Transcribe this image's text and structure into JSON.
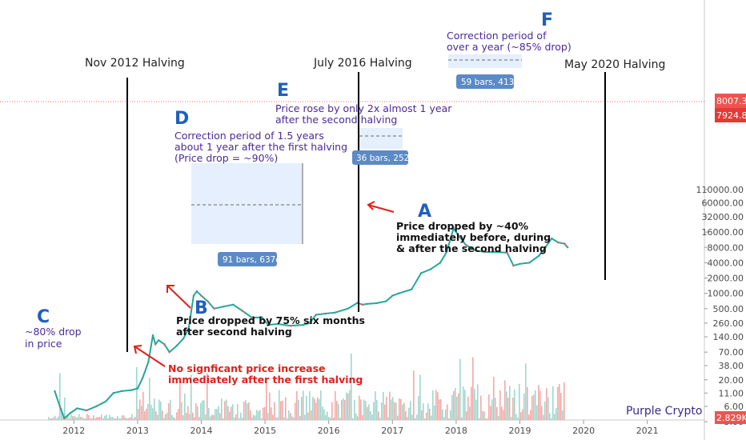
{
  "chart_data": {
    "type": "line",
    "x_axis": {
      "ticks": [
        "2012",
        "2013",
        "2014",
        "2015",
        "2016",
        "2017",
        "2018",
        "2019",
        "2020",
        "2021"
      ]
    },
    "y_axis": {
      "scale": "log",
      "ticks": [
        "110000.00",
        "60000.00",
        "32000.00",
        "16000.00",
        "8000.00",
        "4000.00",
        "2000.00",
        "1000.00",
        "500.00",
        "260.00",
        "140.00",
        "70.00",
        "38.00",
        "20.00",
        "11.00",
        "6.00",
        "3.00"
      ]
    },
    "series": [
      {
        "x": [
          2011.7,
          2011.78,
          2011.85,
          2011.95,
          2012.05,
          2012.2,
          2012.35,
          2012.5,
          2012.62,
          2012.75,
          2012.9,
          2013.0,
          2013.08,
          2013.17,
          2013.24,
          2013.28,
          2013.33,
          2013.42,
          2013.5,
          2013.62,
          2013.72,
          2013.8,
          2013.88,
          2013.93,
          2014.0,
          2014.1,
          2014.2,
          2014.35,
          2014.5,
          2014.65,
          2014.8,
          2014.95,
          2015.05,
          2015.2,
          2015.4,
          2015.6,
          2015.7,
          2015.8,
          2015.95,
          2016.1,
          2016.3,
          2016.45,
          2016.53,
          2016.6,
          2016.75,
          2016.9,
          2017.0,
          2017.1,
          2017.3,
          2017.45,
          2017.6,
          2017.75,
          2017.85,
          2017.96,
          2018.05,
          2018.15,
          2018.3,
          2018.45,
          2018.6,
          2018.8,
          2018.9,
          2019.0,
          2019.15,
          2019.3,
          2019.4,
          2019.5,
          2019.6,
          2019.7,
          2019.75
        ],
        "y": [
          12,
          6,
          3.5,
          4.5,
          5.5,
          5,
          6,
          7.5,
          11,
          12,
          12.5,
          13.5,
          22,
          45,
          150,
          100,
          120,
          100,
          70,
          95,
          130,
          200,
          900,
          1100,
          900,
          700,
          500,
          550,
          600,
          450,
          330,
          340,
          240,
          250,
          230,
          240,
          260,
          380,
          400,
          420,
          500,
          650,
          600,
          620,
          640,
          700,
          900,
          1000,
          1200,
          2500,
          3000,
          4000,
          6500,
          19000,
          13000,
          9000,
          7000,
          6500,
          6500,
          6300,
          3500,
          3800,
          4000,
          5500,
          8000,
          12000,
          10000,
          9500,
          8000
        ]
      }
    ],
    "halvings": [
      "Nov 2012 Halving",
      "July 2016 Halving",
      "May 2020 Halving"
    ],
    "current_prices": [
      "8007.34",
      "7924.80",
      "2.829K"
    ],
    "annotations": {
      "C": {
        "letter": "C",
        "lines": [
          "~80% drop",
          "in price"
        ]
      },
      "D": {
        "letter": "D",
        "lines": [
          "Correction period of 1.5 years",
          "about 1 year after the first halving",
          "(Price drop = ~90%)"
        ]
      },
      "E": {
        "letter": "E",
        "lines": [
          "Price rose by only 2x almost 1 year",
          "after the second halving"
        ]
      },
      "F": {
        "letter": "F",
        "lines": [
          "Correction period of",
          "over a year (~85% drop)"
        ]
      },
      "A": {
        "letter": "A",
        "lines": [
          "Price dropped by ~40%",
          "immediately before, during",
          "& after the second halving"
        ]
      },
      "B": {
        "letter": "B",
        "lines": [
          "Price dropped by 75% six months",
          "after second halving"
        ]
      },
      "no_increase": {
        "lines": [
          "No signficant price increase",
          "immediately after the first halving"
        ]
      }
    },
    "measurements": [
      "91 bars, 637d",
      "36 bars, 252d",
      "59 bars, 413d"
    ],
    "watermark": "Purple Crypto"
  }
}
